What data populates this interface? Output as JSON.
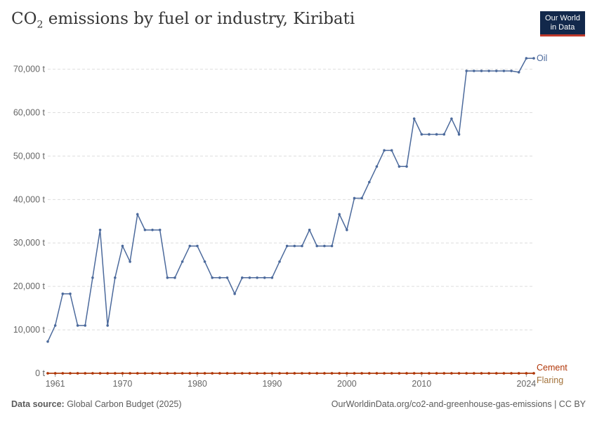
{
  "header": {
    "title_prefix": "CO",
    "title_sub": "2",
    "title_suffix": " emissions by fuel or industry, Kiribati",
    "logo_line1": "Our World",
    "logo_line2": "in Data"
  },
  "footer": {
    "source_label": "Data source:",
    "source_text": " Global Carbon Budget (2025)",
    "right_text": "OurWorldinData.org/co2-and-greenhouse-gas-emissions | CC BY"
  },
  "colors": {
    "oil": "#4c6a9c",
    "cement": "#b13507",
    "flaring": "#a2723a",
    "grid": "#dddddd",
    "axis": "#666666"
  },
  "chart_data": {
    "type": "line",
    "title": "CO₂ emissions by fuel or industry, Kiribati",
    "y_tick_labels": [
      "0 t",
      "10,000 t",
      "20,000 t",
      "30,000 t",
      "40,000 t",
      "50,000 t",
      "60,000 t",
      "70,000 t"
    ],
    "y_ticks": [
      0,
      10000,
      20000,
      30000,
      40000,
      50000,
      60000,
      70000
    ],
    "x_tick_labels": [
      "1961",
      "1970",
      "1980",
      "1990",
      "2000",
      "2010",
      "2024"
    ],
    "x_ticks": [
      1961,
      1970,
      1980,
      1990,
      2000,
      2010,
      2024
    ],
    "xlim": [
      1960,
      2025
    ],
    "ylim": [
      0,
      73000
    ],
    "grid": "horizontal dashed",
    "x": [
      1960,
      1961,
      1962,
      1963,
      1964,
      1965,
      1966,
      1967,
      1968,
      1969,
      1970,
      1971,
      1972,
      1973,
      1974,
      1975,
      1976,
      1977,
      1978,
      1979,
      1980,
      1981,
      1982,
      1983,
      1984,
      1985,
      1986,
      1987,
      1988,
      1989,
      1990,
      1991,
      1992,
      1993,
      1994,
      1995,
      1996,
      1997,
      1998,
      1999,
      2000,
      2001,
      2002,
      2003,
      2004,
      2005,
      2006,
      2007,
      2008,
      2009,
      2010,
      2011,
      2012,
      2013,
      2014,
      2015,
      2016,
      2017,
      2018,
      2019,
      2020,
      2021,
      2022,
      2023,
      2024,
      2025
    ],
    "series": [
      {
        "name": "Oil",
        "color": "#4c6a9c",
        "values": [
          7300,
          11000,
          18300,
          18300,
          11000,
          11000,
          22000,
          33000,
          11000,
          22000,
          29300,
          25700,
          36600,
          33000,
          33000,
          33000,
          22000,
          22000,
          25700,
          29300,
          29300,
          25700,
          22000,
          22000,
          22000,
          18300,
          22000,
          22000,
          22000,
          22000,
          22000,
          25700,
          29300,
          29300,
          29300,
          33000,
          29300,
          29300,
          29300,
          36600,
          33000,
          40300,
          40300,
          44000,
          47600,
          51300,
          51300,
          47600,
          47600,
          58600,
          55000,
          55000,
          55000,
          55000,
          58600,
          55000,
          69600,
          69600,
          69600,
          69600,
          69600,
          69600,
          69600,
          69300,
          72500,
          72500
        ]
      },
      {
        "name": "Cement",
        "color": "#b13507",
        "values_all": 0
      },
      {
        "name": "Flaring",
        "color": "#a2723a",
        "values_all": 0
      }
    ]
  }
}
